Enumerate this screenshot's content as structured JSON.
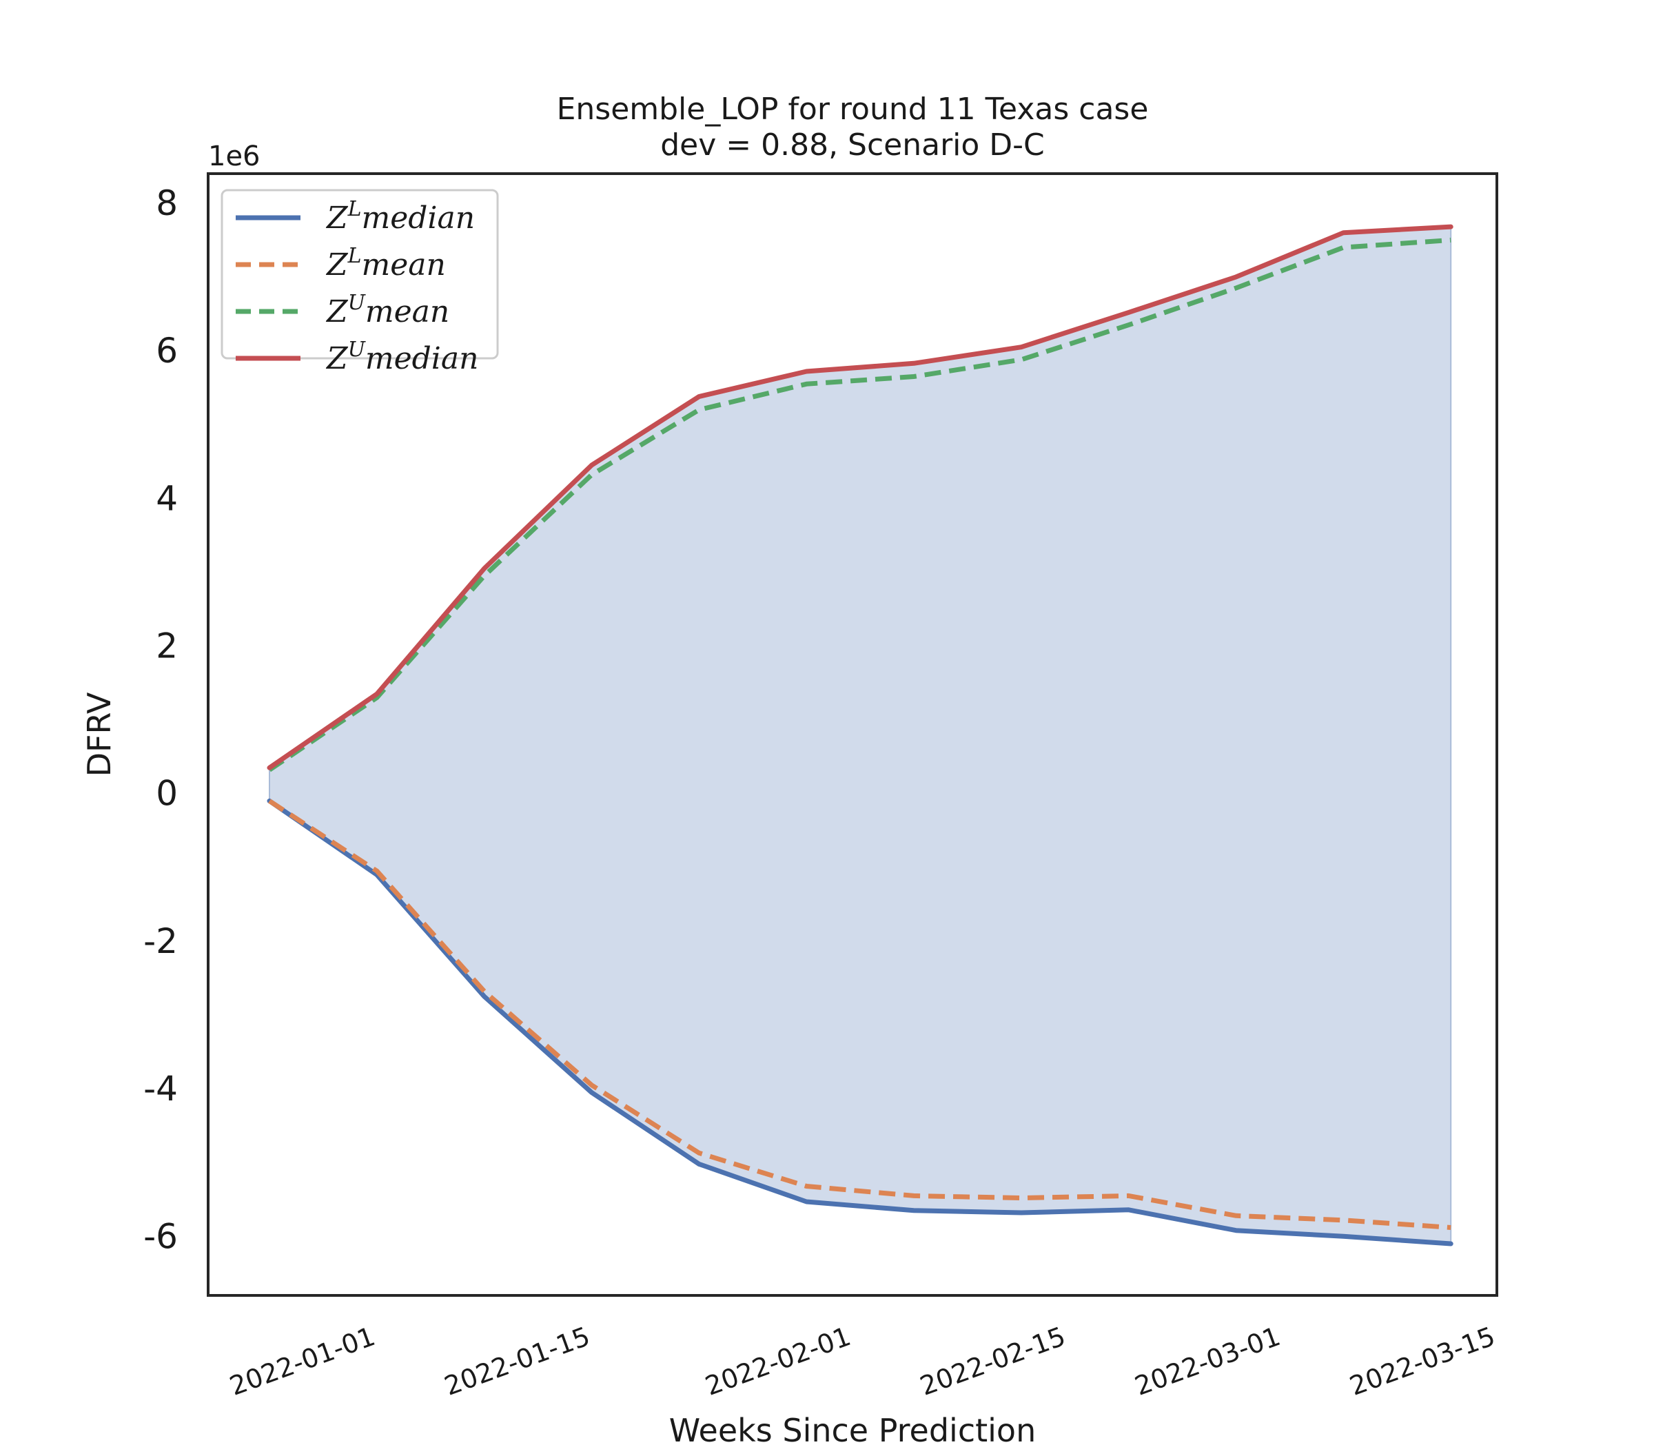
{
  "chart_data": {
    "type": "line",
    "title": "Ensemble_LOP for round 11 Texas case",
    "subtitle": "dev = 0.88, Scenario D-C",
    "xlabel": "Weeks Since Prediction",
    "ylabel": "DFRV",
    "y_multiplier_label": "1e6",
    "x": [
      "2021-12-25",
      "2022-01-01",
      "2022-01-08",
      "2022-01-15",
      "2022-01-22",
      "2022-01-29",
      "2022-02-05",
      "2022-02-12",
      "2022-02-19",
      "2022-02-26",
      "2022-03-05",
      "2022-03-12"
    ],
    "xlim": [
      "2021-12-21",
      "2022-03-15"
    ],
    "ylim": [
      -6.8,
      8.4
    ],
    "x_ticks": [
      "2022-01-01",
      "2022-01-15",
      "2022-02-01",
      "2022-02-15",
      "2022-03-01",
      "2022-03-15"
    ],
    "y_ticks": [
      -6,
      -4,
      -2,
      0,
      2,
      4,
      6,
      8
    ],
    "grid": false,
    "legend_position": "top-left",
    "fill_between": {
      "lower": "Z^L median",
      "upper": "Z^U median",
      "color": "#d1dbeb"
    },
    "series": [
      {
        "name": "Z^L median",
        "sup": "L",
        "word": "median",
        "style": "solid",
        "color": "#4c72b0",
        "values": [
          -0.1,
          -1.1,
          -2.75,
          -4.05,
          -5.02,
          -5.53,
          -5.65,
          -5.68,
          -5.64,
          -5.92,
          -6.0,
          -6.1
        ]
      },
      {
        "name": "Z^L mean",
        "sup": "L",
        "word": "mean",
        "style": "dashed",
        "color": "#dd8452",
        "values": [
          -0.1,
          -1.05,
          -2.68,
          -3.95,
          -4.87,
          -5.32,
          -5.45,
          -5.48,
          -5.45,
          -5.72,
          -5.78,
          -5.88
        ]
      },
      {
        "name": "Z^U mean",
        "sup": "U",
        "word": "mean",
        "style": "dashed",
        "color": "#55a868",
        "values": [
          0.32,
          1.3,
          2.95,
          4.32,
          5.2,
          5.55,
          5.65,
          5.88,
          6.35,
          6.85,
          7.4,
          7.5
        ]
      },
      {
        "name": "Z^U median",
        "sup": "U",
        "word": "median",
        "style": "solid",
        "color": "#c44e52",
        "values": [
          0.35,
          1.35,
          3.05,
          4.45,
          5.38,
          5.72,
          5.83,
          6.05,
          6.52,
          7.0,
          7.6,
          7.68
        ]
      }
    ]
  }
}
